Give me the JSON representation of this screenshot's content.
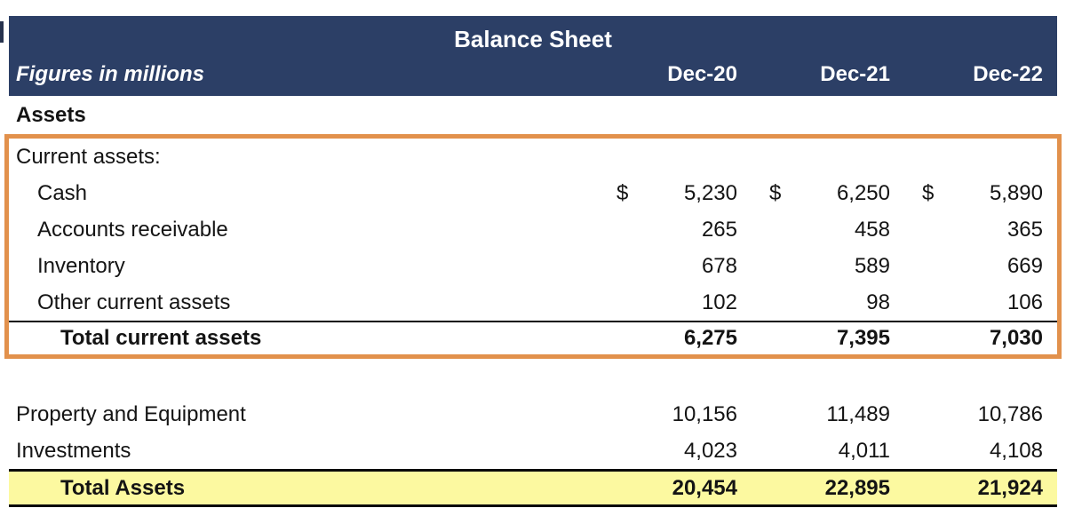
{
  "header": {
    "title": "Balance Sheet",
    "subtitle": "Figures in millions",
    "columns": [
      "Dec-20",
      "Dec-21",
      "Dec-22"
    ]
  },
  "assets_heading": "Assets",
  "current_assets": {
    "section_label": "Current assets:",
    "rows": [
      {
        "label": "Cash",
        "currency": [
          "$",
          "$",
          "$"
        ],
        "values": [
          "5,230",
          "6,250",
          "5,890"
        ]
      },
      {
        "label": "Accounts receivable",
        "values": [
          "265",
          "458",
          "365"
        ]
      },
      {
        "label": "Inventory",
        "values": [
          "678",
          "589",
          "669"
        ]
      },
      {
        "label": "Other current assets",
        "values": [
          "102",
          "98",
          "106"
        ]
      }
    ],
    "total": {
      "label": "Total current assets",
      "values": [
        "6,275",
        "7,395",
        "7,030"
      ]
    }
  },
  "non_current": {
    "rows": [
      {
        "label": "Property and Equipment",
        "values": [
          "10,156",
          "11,489",
          "10,786"
        ]
      },
      {
        "label": "Investments",
        "values": [
          "4,023",
          "4,011",
          "4,108"
        ]
      }
    ]
  },
  "total_assets": {
    "label": "Total Assets",
    "values": [
      "20,454",
      "22,895",
      "21,924"
    ]
  },
  "colors": {
    "header_bg": "#2c3f66",
    "highlight_border": "#e2914c",
    "total_row_bg": "#fcf9a0",
    "text": "#141414"
  }
}
